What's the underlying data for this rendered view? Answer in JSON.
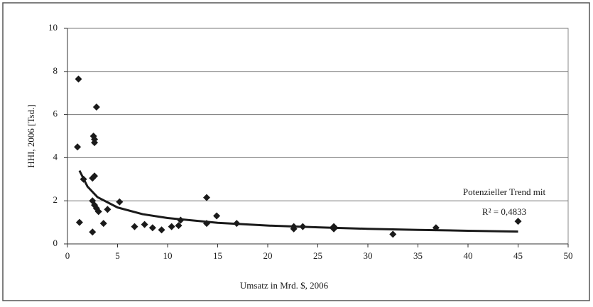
{
  "chart_data": {
    "type": "scatter",
    "xlabel": "Umsatz in Mrd. $, 2006",
    "ylabel": "HHI, 2006 [Tsd.]",
    "annotations": [
      "Potenzieller Trend mit",
      "R² = 0,4833"
    ],
    "x": [
      1.1,
      1.0,
      1.2,
      1.6,
      2.6,
      2.7,
      2.7,
      2.9,
      2.7,
      2.5,
      2.5,
      2.7,
      2.9,
      3.1,
      2.5,
      3.6,
      4.0,
      5.2,
      6.7,
      7.7,
      8.5,
      9.4,
      10.4,
      11.1,
      11.3,
      13.9,
      13.9,
      14.9,
      16.9,
      22.6,
      22.6,
      23.5,
      26.6,
      26.6,
      32.5,
      36.8,
      45.0
    ],
    "values": [
      7.65,
      4.5,
      1.0,
      3.0,
      5.0,
      4.85,
      4.7,
      6.35,
      3.15,
      3.05,
      2.0,
      1.8,
      1.65,
      1.5,
      0.55,
      0.95,
      1.6,
      1.95,
      0.8,
      0.9,
      0.75,
      0.65,
      0.8,
      0.85,
      1.1,
      2.15,
      0.95,
      1.3,
      0.95,
      0.8,
      0.7,
      0.8,
      0.8,
      0.7,
      0.45,
      0.75,
      1.05
    ],
    "color": "#1a1a1a",
    "trend": {
      "x": [
        1.2,
        2,
        3,
        5,
        7.5,
        10,
        15,
        20,
        25,
        30,
        35,
        40,
        45
      ],
      "values": [
        3.4,
        2.66,
        2.17,
        1.69,
        1.38,
        1.2,
        0.98,
        0.85,
        0.77,
        0.7,
        0.65,
        0.61,
        0.57
      ]
    },
    "xlim": [
      0,
      50
    ],
    "xticks": [
      0,
      5,
      10,
      15,
      20,
      25,
      30,
      35,
      40,
      45,
      50
    ],
    "ylim": [
      0,
      10
    ],
    "yticks": [
      0,
      2,
      4,
      6,
      8,
      10
    ],
    "grid": true
  }
}
